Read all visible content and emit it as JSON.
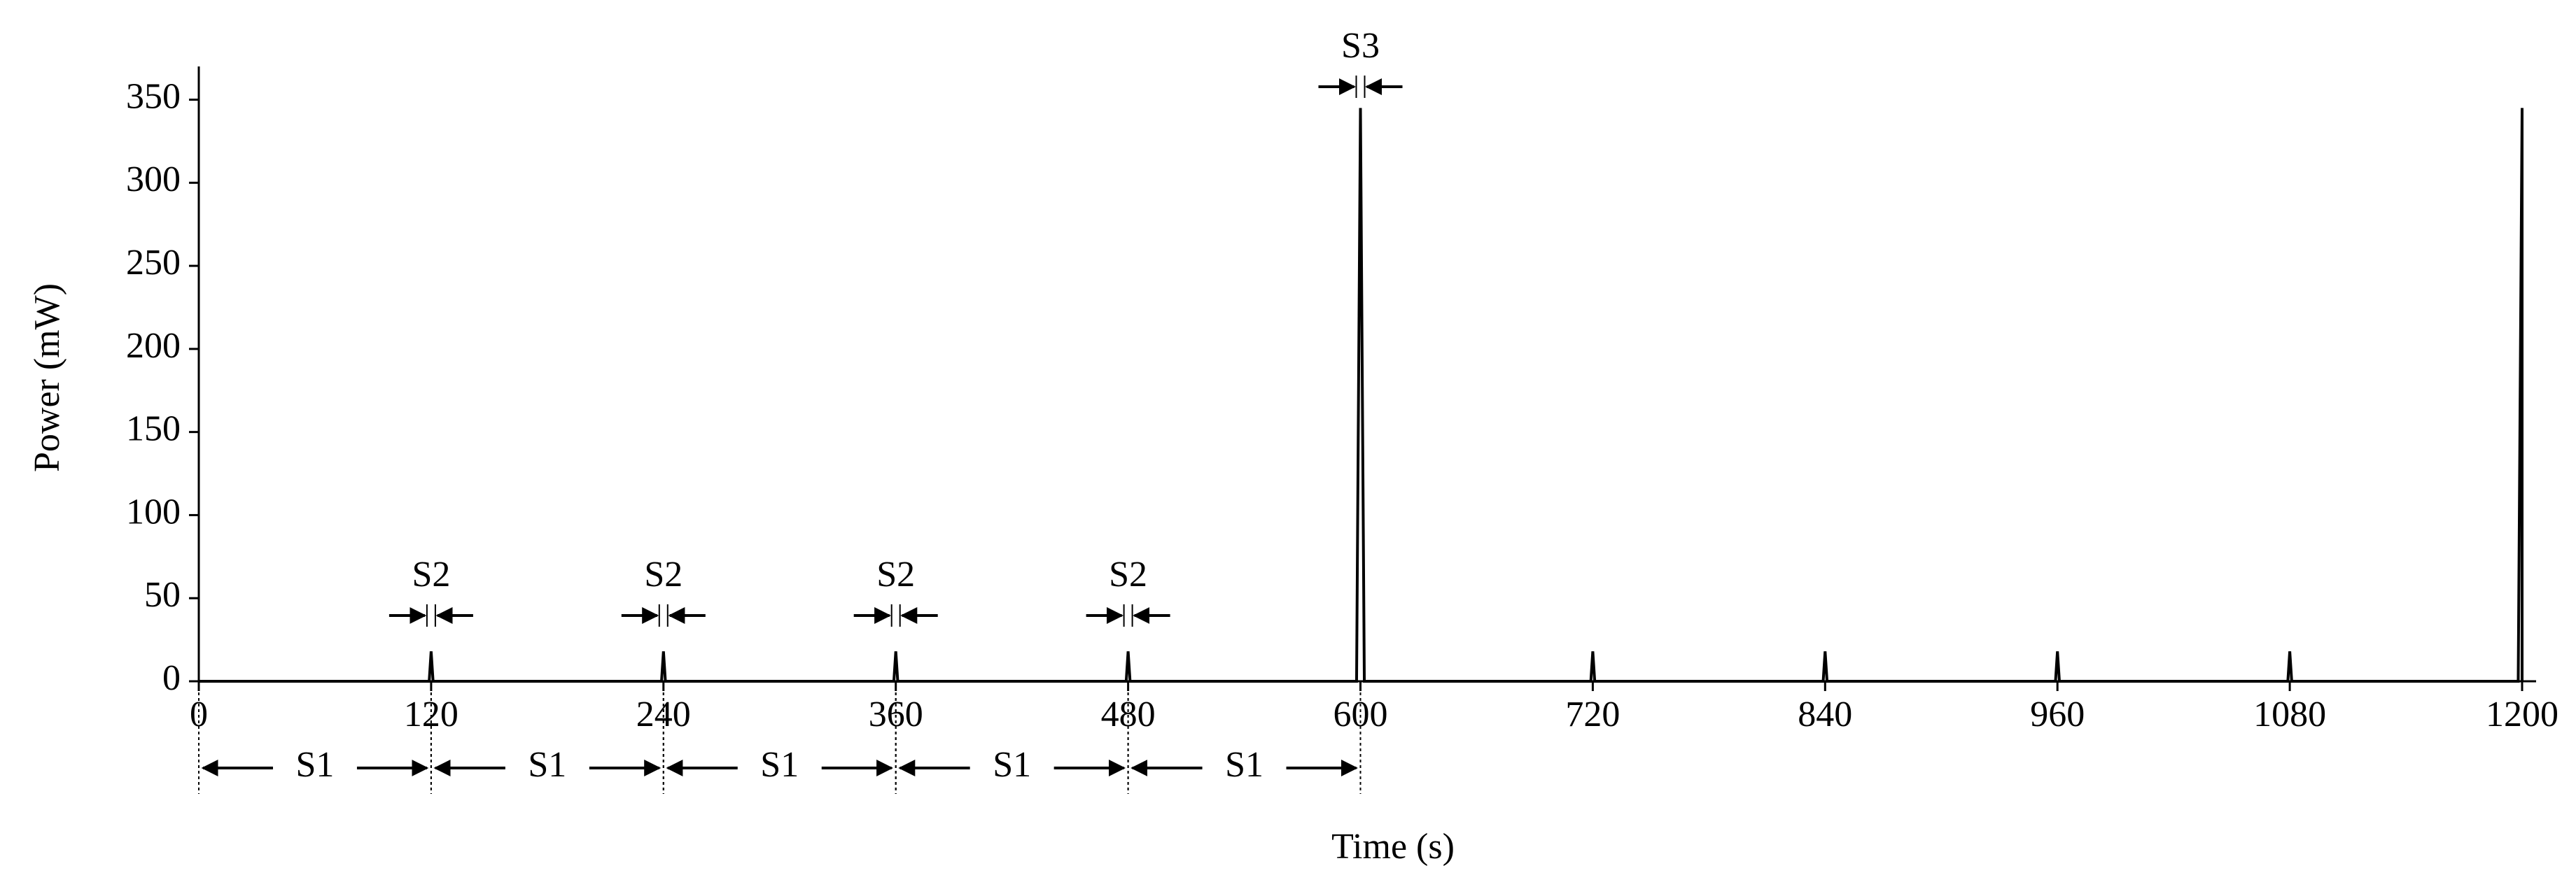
{
  "chart_data": {
    "type": "line",
    "x_label": "Time (s)",
    "y_label": "Power (mW)",
    "x": [
      0,
      119,
      120,
      121,
      239,
      240,
      241,
      359,
      360,
      361,
      479,
      480,
      481,
      598,
      600,
      602,
      719,
      720,
      721,
      839,
      840,
      841,
      959,
      960,
      961,
      1079,
      1080,
      1081,
      1198,
      1200,
      1200
    ],
    "series": [
      {
        "color": "#000000",
        "values": [
          0,
          0,
          18,
          0,
          0,
          18,
          0,
          0,
          18,
          0,
          0,
          18,
          0,
          0,
          345,
          0,
          0,
          18,
          0,
          0,
          18,
          0,
          0,
          18,
          0,
          0,
          18,
          0,
          0,
          345,
          0
        ]
      }
    ],
    "xlim": [
      0,
      1200
    ],
    "ylim": [
      0,
      370
    ],
    "xticks": [
      0,
      120,
      240,
      360,
      480,
      600,
      720,
      840,
      960,
      1080,
      1200
    ],
    "yticks": [
      0,
      50,
      100,
      150,
      200,
      250,
      300,
      350
    ],
    "annotations": [
      "S1",
      "S1",
      "S1",
      "S1",
      "S1",
      "S2",
      "S2",
      "S2",
      "S2",
      "S3"
    ]
  }
}
